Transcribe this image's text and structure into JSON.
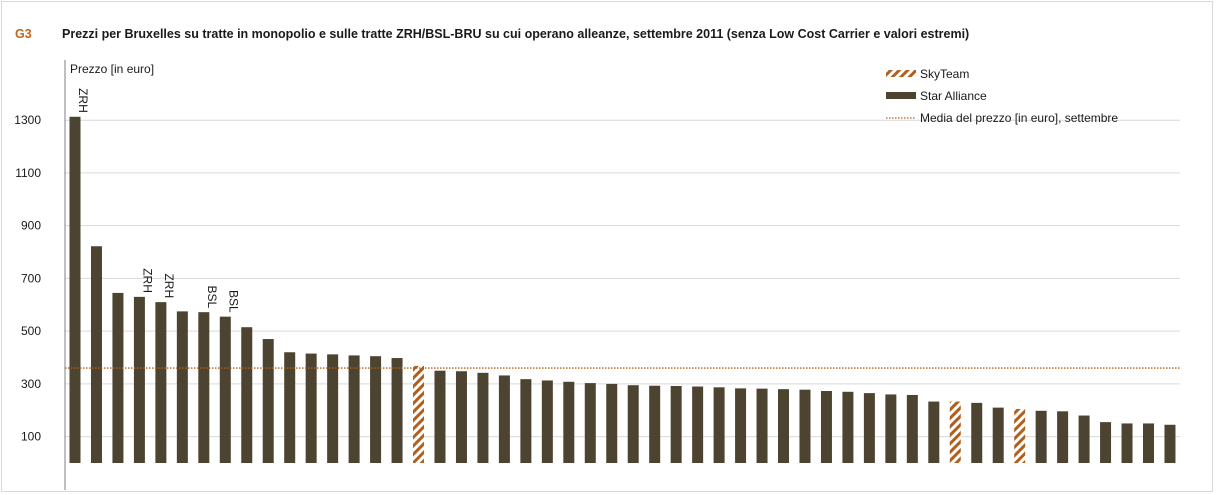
{
  "figure_label": "G3",
  "chart_data": {
    "type": "bar",
    "title": "Prezzi per Bruxelles su tratte in monopolio e sulle tratte ZRH/BSL-BRU  su cui operano alleanze, settembre 2011 (senza Low Cost Carrier e valori estremi)",
    "ylabel": "Prezzo [in euro]",
    "ylim": [
      0,
      1400
    ],
    "yticks": [
      100,
      300,
      500,
      700,
      900,
      1100,
      1300
    ],
    "grid": true,
    "legend_position": "top-right",
    "series": [
      {
        "name": "SkyTeam",
        "color": "#b0601c",
        "pattern": "hatch"
      },
      {
        "name": "Star Alliance",
        "color": "#4d4331",
        "pattern": "solid"
      }
    ],
    "bars": [
      {
        "value": 1313,
        "series": "Star Alliance",
        "label": "ZRH"
      },
      {
        "value": 822,
        "series": "Star Alliance",
        "label": ""
      },
      {
        "value": 645,
        "series": "Star Alliance",
        "label": ""
      },
      {
        "value": 630,
        "series": "Star Alliance",
        "label": "ZRH"
      },
      {
        "value": 610,
        "series": "Star Alliance",
        "label": "ZRH"
      },
      {
        "value": 575,
        "series": "Star Alliance",
        "label": ""
      },
      {
        "value": 572,
        "series": "Star Alliance",
        "label": "BSL"
      },
      {
        "value": 555,
        "series": "Star Alliance",
        "label": "BSL"
      },
      {
        "value": 515,
        "series": "Star Alliance",
        "label": ""
      },
      {
        "value": 470,
        "series": "Star Alliance",
        "label": ""
      },
      {
        "value": 420,
        "series": "Star Alliance",
        "label": ""
      },
      {
        "value": 415,
        "series": "Star Alliance",
        "label": ""
      },
      {
        "value": 412,
        "series": "Star Alliance",
        "label": ""
      },
      {
        "value": 408,
        "series": "Star Alliance",
        "label": ""
      },
      {
        "value": 405,
        "series": "Star Alliance",
        "label": ""
      },
      {
        "value": 398,
        "series": "Star Alliance",
        "label": ""
      },
      {
        "value": 368,
        "series": "SkyTeam",
        "label": ""
      },
      {
        "value": 350,
        "series": "Star Alliance",
        "label": ""
      },
      {
        "value": 348,
        "series": "Star Alliance",
        "label": ""
      },
      {
        "value": 342,
        "series": "Star Alliance",
        "label": ""
      },
      {
        "value": 332,
        "series": "Star Alliance",
        "label": ""
      },
      {
        "value": 318,
        "series": "Star Alliance",
        "label": ""
      },
      {
        "value": 313,
        "series": "Star Alliance",
        "label": ""
      },
      {
        "value": 308,
        "series": "Star Alliance",
        "label": ""
      },
      {
        "value": 303,
        "series": "Star Alliance",
        "label": ""
      },
      {
        "value": 300,
        "series": "Star Alliance",
        "label": ""
      },
      {
        "value": 295,
        "series": "Star Alliance",
        "label": ""
      },
      {
        "value": 293,
        "series": "Star Alliance",
        "label": ""
      },
      {
        "value": 292,
        "series": "Star Alliance",
        "label": ""
      },
      {
        "value": 290,
        "series": "Star Alliance",
        "label": ""
      },
      {
        "value": 287,
        "series": "Star Alliance",
        "label": ""
      },
      {
        "value": 283,
        "series": "Star Alliance",
        "label": ""
      },
      {
        "value": 282,
        "series": "Star Alliance",
        "label": ""
      },
      {
        "value": 280,
        "series": "Star Alliance",
        "label": ""
      },
      {
        "value": 278,
        "series": "Star Alliance",
        "label": ""
      },
      {
        "value": 273,
        "series": "Star Alliance",
        "label": ""
      },
      {
        "value": 270,
        "series": "Star Alliance",
        "label": ""
      },
      {
        "value": 265,
        "series": "Star Alliance",
        "label": ""
      },
      {
        "value": 260,
        "series": "Star Alliance",
        "label": ""
      },
      {
        "value": 258,
        "series": "Star Alliance",
        "label": ""
      },
      {
        "value": 233,
        "series": "Star Alliance",
        "label": ""
      },
      {
        "value": 233,
        "series": "SkyTeam",
        "label": ""
      },
      {
        "value": 228,
        "series": "Star Alliance",
        "label": ""
      },
      {
        "value": 210,
        "series": "Star Alliance",
        "label": ""
      },
      {
        "value": 205,
        "series": "SkyTeam",
        "label": ""
      },
      {
        "value": 198,
        "series": "Star Alliance",
        "label": ""
      },
      {
        "value": 196,
        "series": "Star Alliance",
        "label": ""
      },
      {
        "value": 180,
        "series": "Star Alliance",
        "label": ""
      },
      {
        "value": 155,
        "series": "Star Alliance",
        "label": ""
      },
      {
        "value": 150,
        "series": "Star Alliance",
        "label": ""
      },
      {
        "value": 150,
        "series": "Star Alliance",
        "label": ""
      },
      {
        "value": 145,
        "series": "Star Alliance",
        "label": ""
      }
    ],
    "reference_line": {
      "name": "Media del prezzo [in euro], settembre",
      "value": 360,
      "color": "#b0601c",
      "style": "dotted"
    }
  }
}
